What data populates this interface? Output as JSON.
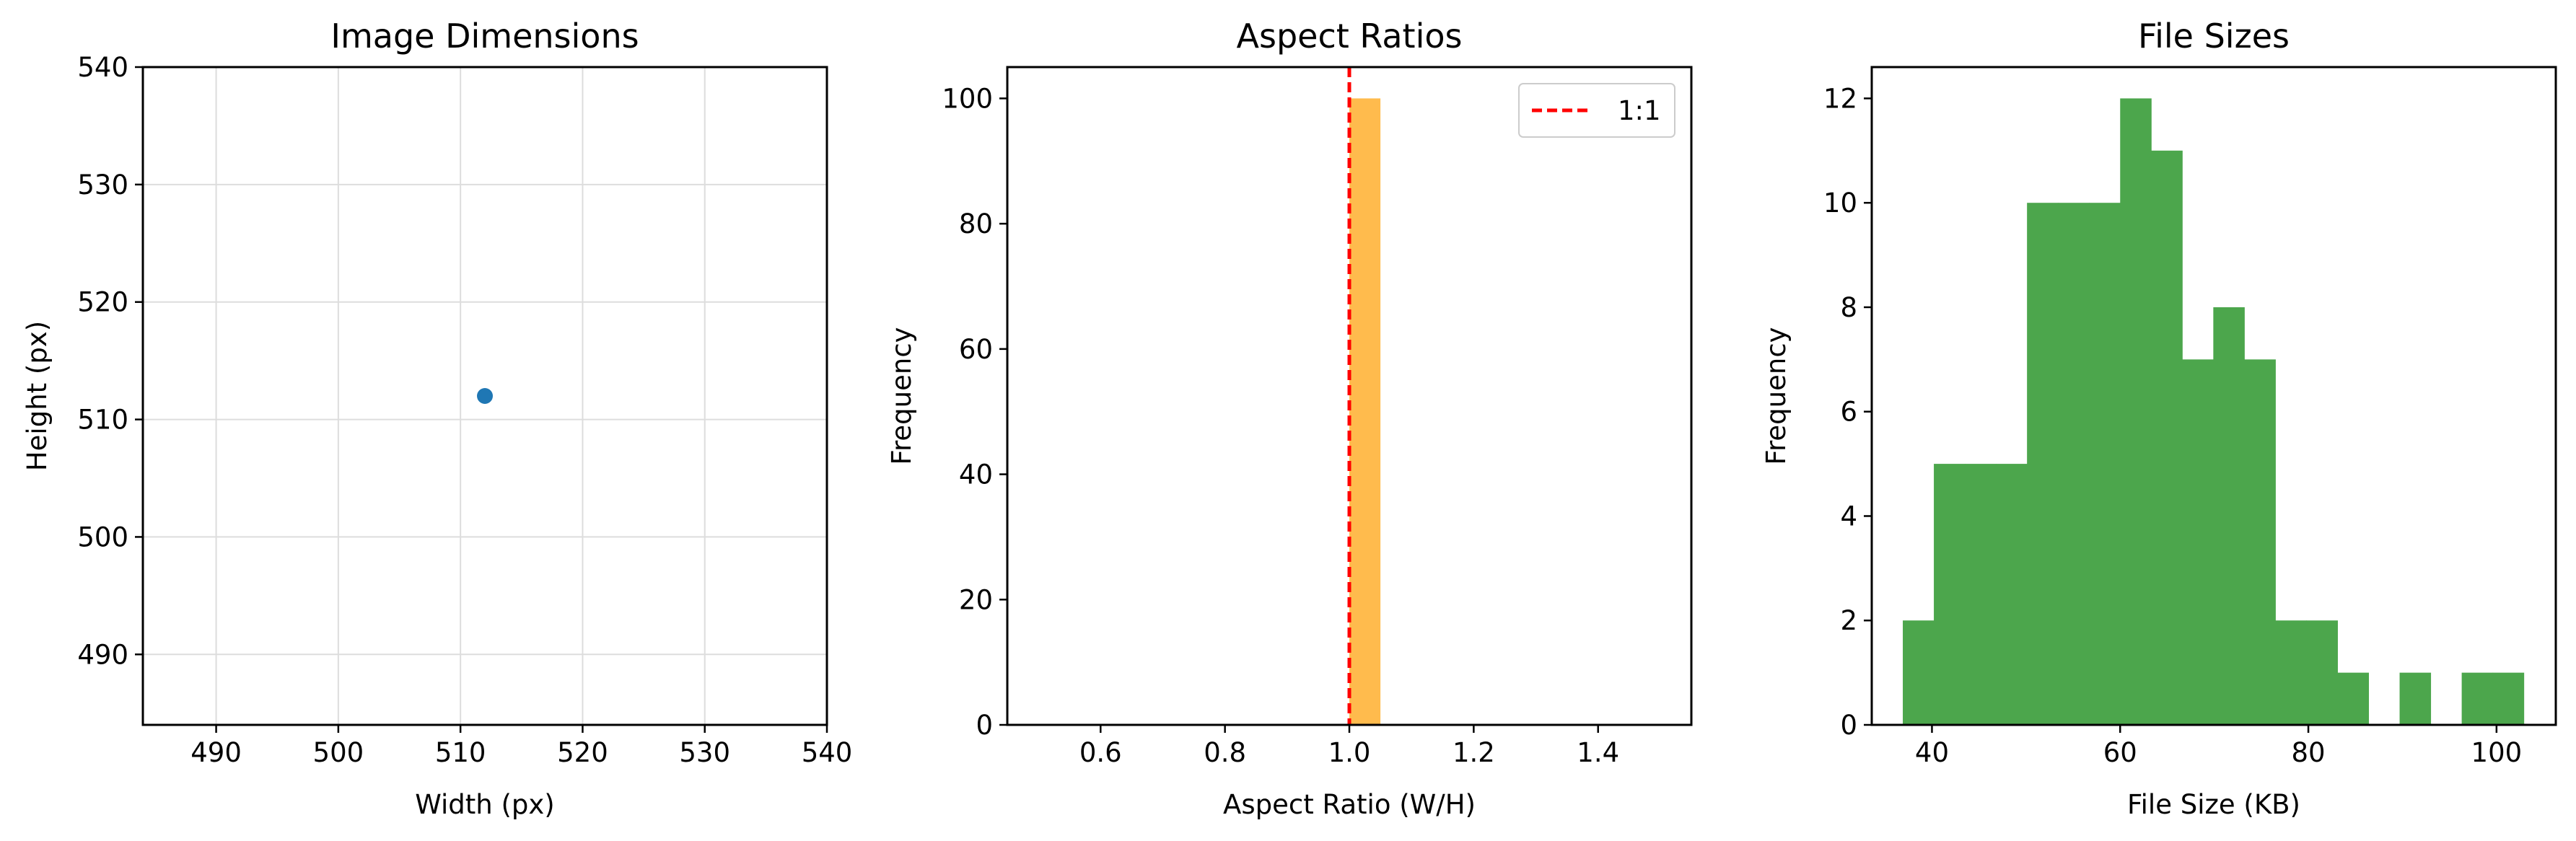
{
  "colors": {
    "scatter": "#1f77b4",
    "aspect_bar": "#ffbb4d",
    "filesize_bar": "#4ca64c",
    "reference_line": "#ff0000",
    "grid": "#dddddd"
  },
  "chart_data": [
    {
      "id": "dimensions",
      "type": "scatter",
      "title": "Image Dimensions",
      "xlabel": "Width (px)",
      "ylabel": "Height (px)",
      "xlim": [
        484,
        540
      ],
      "ylim": [
        484,
        540
      ],
      "xticks": [
        490,
        500,
        510,
        520,
        530,
        540
      ],
      "yticks": [
        490,
        500,
        510,
        520,
        530,
        540
      ],
      "grid": true,
      "points": [
        {
          "x": 512,
          "y": 512
        }
      ]
    },
    {
      "id": "aspect",
      "type": "bar",
      "title": "Aspect Ratios",
      "xlabel": "Aspect Ratio (W/H)",
      "ylabel": "Frequency",
      "xlim": [
        0.45,
        1.55
      ],
      "ylim": [
        0,
        105
      ],
      "xticks": [
        "0.6",
        "0.8",
        "1.0",
        "1.2",
        "1.4"
      ],
      "yticks": [
        0,
        20,
        40,
        60,
        80,
        100
      ],
      "grid": false,
      "bins": [
        {
          "x0": 1.0,
          "x1": 1.05,
          "count": 100
        }
      ],
      "reference_line": {
        "x": 1.0,
        "style": "dashed",
        "label": "1:1"
      },
      "legend": {
        "position": "top-right",
        "entries": [
          "1:1"
        ]
      }
    },
    {
      "id": "filesize",
      "type": "bar",
      "title": "File Sizes",
      "xlabel": "File Size (KB)",
      "ylabel": "Frequency",
      "xlim": [
        33.6,
        106.3
      ],
      "ylim": [
        0,
        12.6
      ],
      "xticks": [
        40,
        60,
        80,
        100
      ],
      "yticks": [
        0,
        2,
        4,
        6,
        8,
        10,
        12
      ],
      "grid": false,
      "bins": [
        {
          "x0": 36.9,
          "x1": 40.2,
          "count": 2
        },
        {
          "x0": 40.2,
          "x1": 43.5,
          "count": 5
        },
        {
          "x0": 43.5,
          "x1": 46.8,
          "count": 5
        },
        {
          "x0": 46.8,
          "x1": 50.1,
          "count": 5
        },
        {
          "x0": 50.1,
          "x1": 53.4,
          "count": 10
        },
        {
          "x0": 53.4,
          "x1": 56.7,
          "count": 10
        },
        {
          "x0": 56.7,
          "x1": 60.0,
          "count": 10
        },
        {
          "x0": 60.0,
          "x1": 63.3,
          "count": 12
        },
        {
          "x0": 63.3,
          "x1": 66.6,
          "count": 11
        },
        {
          "x0": 66.6,
          "x1": 69.9,
          "count": 7
        },
        {
          "x0": 69.9,
          "x1": 73.2,
          "count": 8
        },
        {
          "x0": 73.2,
          "x1": 76.5,
          "count": 7
        },
        {
          "x0": 76.5,
          "x1": 79.8,
          "count": 2
        },
        {
          "x0": 79.8,
          "x1": 83.1,
          "count": 2
        },
        {
          "x0": 83.1,
          "x1": 86.4,
          "count": 1
        },
        {
          "x0": 86.4,
          "x1": 89.7,
          "count": 0
        },
        {
          "x0": 89.7,
          "x1": 93.0,
          "count": 1
        },
        {
          "x0": 93.0,
          "x1": 96.3,
          "count": 0
        },
        {
          "x0": 96.3,
          "x1": 99.6,
          "count": 1
        },
        {
          "x0": 99.6,
          "x1": 102.9,
          "count": 1
        }
      ]
    }
  ]
}
